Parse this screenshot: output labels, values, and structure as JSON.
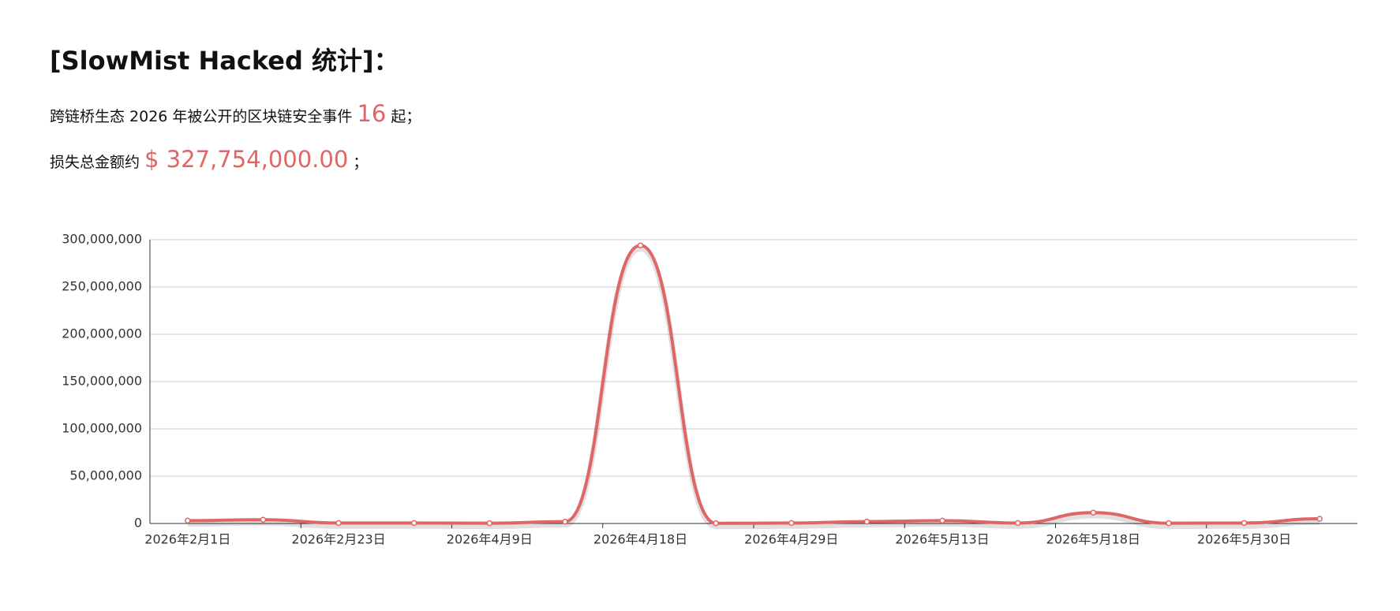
{
  "header": {
    "title": "[SlowMist Hacked 统计]：",
    "line1": {
      "text": "跨链桥生态 2026 年被公开的区块链安全事件",
      "count": "16",
      "suffix": "起；"
    },
    "line2": {
      "text": "损失总金额约",
      "amount": "$ 327,754,000.00",
      "suffix": "；"
    }
  },
  "chart_data": {
    "type": "line",
    "color": "#e06666",
    "smooth": true,
    "grid": true,
    "categories": [
      "2026年2月1日",
      null,
      "2026年2月23日",
      null,
      "2026年4月9日",
      null,
      "2026年4月18日",
      null,
      "2026年4月29日",
      null,
      "2026年5月13日",
      null,
      "2026年5月18日",
      null,
      "2026年5月30日",
      null
    ],
    "values": [
      3000000,
      4000000,
      500000,
      500000,
      300000,
      2000000,
      294000000,
      200000,
      500000,
      2000000,
      3000000,
      500000,
      11500000,
      300000,
      500000,
      5000000
    ],
    "ylim": [
      0,
      300000000
    ],
    "yticks": [
      0,
      {
        "value": 50000000,
        "label": "50,000,000"
      },
      {
        "value": 100000000,
        "label": "100,000,000"
      },
      {
        "value": 150000000,
        "label": "150,000,000"
      },
      {
        "value": 200000000,
        "label": "200,000,000"
      },
      {
        "value": 250000000,
        "label": "250,000,000"
      },
      {
        "value": 300000000,
        "label": "300,000,000"
      }
    ]
  }
}
